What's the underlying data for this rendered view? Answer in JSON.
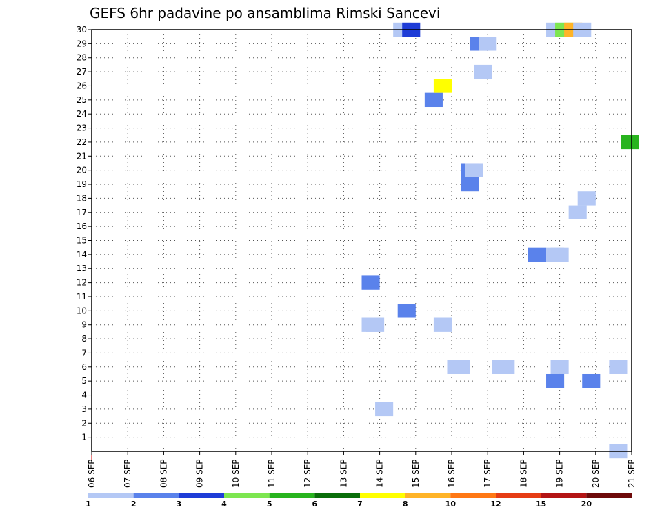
{
  "chart_data": {
    "type": "heatmap",
    "title": "GEFS 6hr padavine po ansamblima Rimski Sancevi",
    "xlabel": "",
    "ylabel": "",
    "x_ticks": [
      "06 SEP",
      "07 SEP",
      "08 SEP",
      "09 SEP",
      "10 SEP",
      "11 SEP",
      "12 SEP",
      "13 SEP",
      "14 SEP",
      "15 SEP",
      "16 SEP",
      "17 SEP",
      "18 SEP",
      "19 SEP",
      "20 SEP",
      "21 SEP"
    ],
    "x_range": [
      0,
      60
    ],
    "y_ticks": [
      1,
      2,
      3,
      4,
      5,
      6,
      7,
      8,
      9,
      10,
      11,
      12,
      13,
      14,
      15,
      16,
      17,
      18,
      19,
      20,
      21,
      22,
      23,
      24,
      25,
      26,
      27,
      28,
      29,
      30
    ],
    "y_range": [
      0,
      30
    ],
    "grid": true,
    "colorbar": {
      "thresholds": [
        "1",
        "2",
        "3",
        "4",
        "5",
        "6",
        "7",
        "8",
        "10",
        "12",
        "15",
        "20"
      ],
      "colors": [
        "#b4c8f5",
        "#5a82eb",
        "#1e3cd7",
        "#7de650",
        "#28b41e",
        "#0a6e0a",
        "#ffff00",
        "#ffb428",
        "#ff7814",
        "#e63c14",
        "#b41414",
        "#6e0a0a"
      ]
    },
    "cells": [
      {
        "x": 32.5,
        "y": 3,
        "bin": 0
      },
      {
        "x": 40.5,
        "y": 6,
        "bin": 0
      },
      {
        "x": 41,
        "y": 6,
        "bin": 0
      },
      {
        "x": 45.5,
        "y": 6,
        "bin": 0
      },
      {
        "x": 46,
        "y": 6,
        "bin": 0
      },
      {
        "x": 52,
        "y": 6,
        "bin": 0
      },
      {
        "x": 58.5,
        "y": 6,
        "bin": 0
      },
      {
        "x": 51.5,
        "y": 5,
        "bin": 1
      },
      {
        "x": 55.5,
        "y": 5,
        "bin": 1
      },
      {
        "x": 58.5,
        "y": 0,
        "bin": 0
      },
      {
        "x": 31,
        "y": 9,
        "bin": 0
      },
      {
        "x": 31.5,
        "y": 9,
        "bin": 0
      },
      {
        "x": 39,
        "y": 9,
        "bin": 0
      },
      {
        "x": 35,
        "y": 10,
        "bin": 1
      },
      {
        "x": 31,
        "y": 12,
        "bin": 1
      },
      {
        "x": 49.5,
        "y": 14,
        "bin": 1
      },
      {
        "x": 51.5,
        "y": 14,
        "bin": 0
      },
      {
        "x": 52,
        "y": 14,
        "bin": 0
      },
      {
        "x": 54,
        "y": 17,
        "bin": 0
      },
      {
        "x": 55,
        "y": 18,
        "bin": 0
      },
      {
        "x": 42,
        "y": 19,
        "bin": 1
      },
      {
        "x": 42,
        "y": 20,
        "bin": 1
      },
      {
        "x": 42.5,
        "y": 20,
        "bin": 0
      },
      {
        "x": 38,
        "y": 25,
        "bin": 1
      },
      {
        "x": 39,
        "y": 26,
        "bin": 6
      },
      {
        "x": 59.8,
        "y": 22,
        "bin": 4
      },
      {
        "x": 43,
        "y": 29,
        "bin": 1
      },
      {
        "x": 44,
        "y": 29,
        "bin": 0
      },
      {
        "x": 43.5,
        "y": 27,
        "bin": 0
      },
      {
        "x": 34.5,
        "y": 30,
        "bin": 0
      },
      {
        "x": 35.5,
        "y": 30,
        "bin": 2
      },
      {
        "x": 51.5,
        "y": 30,
        "bin": 0
      },
      {
        "x": 52.5,
        "y": 30,
        "bin": 3
      },
      {
        "x": 53.5,
        "y": 30,
        "bin": 7
      },
      {
        "x": 54.5,
        "y": 30,
        "bin": 0
      }
    ]
  }
}
